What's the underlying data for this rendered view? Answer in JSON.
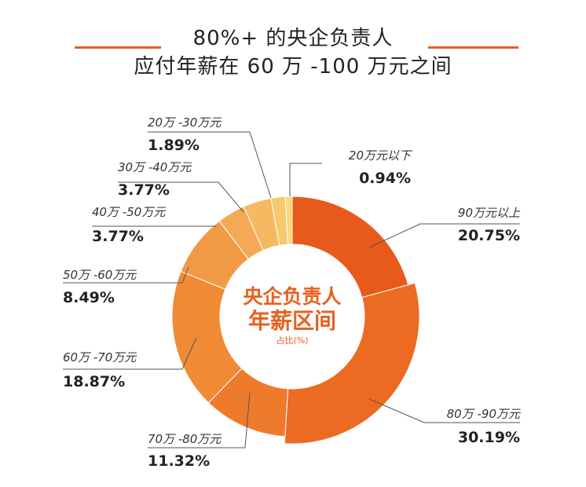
{
  "title": {
    "line1": "80%+ 的央企负责人",
    "line2": "应付年薪在 60 万 -100 万元之间"
  },
  "colors": {
    "accent": "#e8611e",
    "title_rule": "#e8611e",
    "leader": "#555555"
  },
  "chart_data": {
    "type": "pie",
    "variant": "donut",
    "center_label": [
      "央企负责人",
      "年薪区间",
      "占比(%)"
    ],
    "unit": "%",
    "slices": [
      {
        "label": "90万元以上",
        "value": 20.75,
        "display": "20.75%",
        "color": "#e85a1b",
        "exploded": false
      },
      {
        "label": "80万 -90万元",
        "value": 30.19,
        "display": "30.19%",
        "color": "#ec6a22",
        "exploded": true
      },
      {
        "label": "70万 -80万元",
        "value": 11.32,
        "display": "11.32%",
        "color": "#ee7a2c",
        "exploded": false
      },
      {
        "label": "60万 -70万元",
        "value": 18.87,
        "display": "18.87%",
        "color": "#f08a35",
        "exploded": false
      },
      {
        "label": "50万 -60万元",
        "value": 8.49,
        "display": "8.49%",
        "color": "#f19a45",
        "exploded": false
      },
      {
        "label": "40万 -50万元",
        "value": 3.77,
        "display": "3.77%",
        "color": "#f3a955",
        "exploded": false
      },
      {
        "label": "30万 -40万元",
        "value": 3.77,
        "display": "3.77%",
        "color": "#f5b962",
        "exploded": false
      },
      {
        "label": "20万 -30万元",
        "value": 1.89,
        "display": "1.89%",
        "color": "#f6c96f",
        "exploded": false
      },
      {
        "label": "20万元以下",
        "value": 0.94,
        "display": "0.94%",
        "color": "#f8d97c",
        "exploded": false
      }
    ]
  }
}
